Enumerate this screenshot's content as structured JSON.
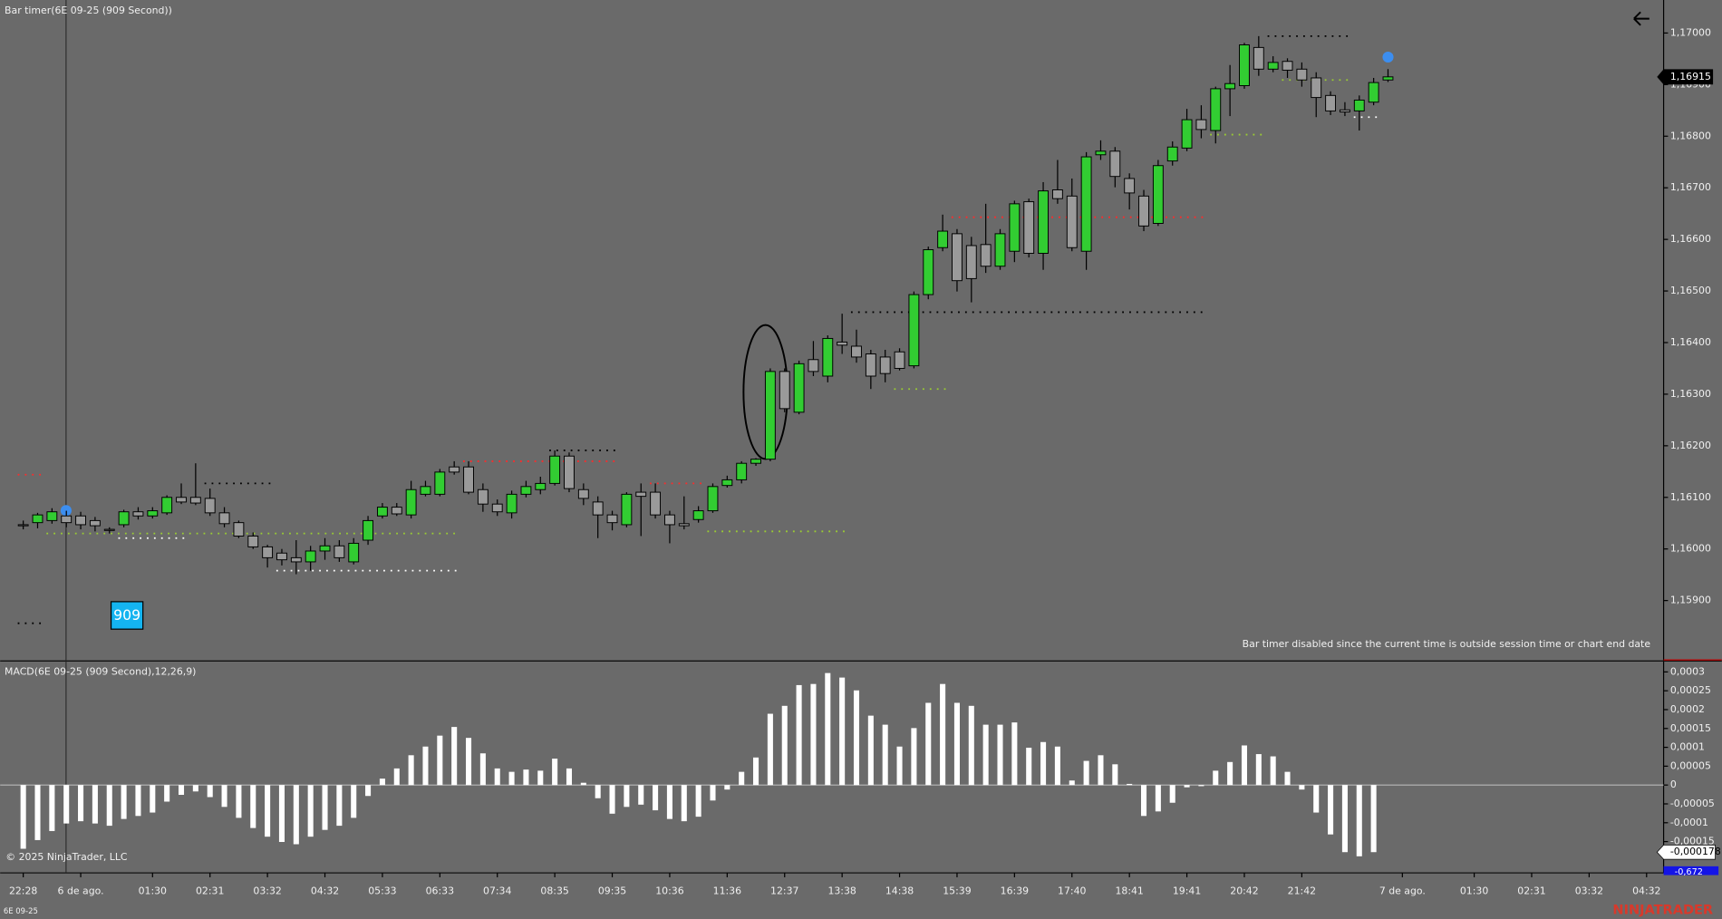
{
  "timer": "909",
  "copyright": "© 2025 NinjaTrader, LLC",
  "instrument": "6E 09-25",
  "brand": "NINJATRADER",
  "chart_data": [
    {
      "type": "candlestick",
      "title": "Bar timer(6E 09-25 (909 Second))",
      "note": "Bar timer disabled since the current time is outside session time or chart end date",
      "categories": [
        "22:28",
        null,
        null,
        null,
        "6 de ago.",
        null,
        null,
        null,
        null,
        "01:30",
        null,
        null,
        null,
        "02:31",
        null,
        null,
        null,
        "03:32",
        null,
        null,
        null,
        "04:32",
        null,
        null,
        null,
        "05:33",
        null,
        null,
        null,
        "06:33",
        null,
        null,
        null,
        "07:34",
        null,
        null,
        null,
        "08:35",
        null,
        null,
        null,
        "09:35",
        null,
        null,
        null,
        "10:36",
        null,
        null,
        null,
        "11:36",
        null,
        null,
        null,
        "12:37",
        null,
        null,
        null,
        "13:38",
        null,
        null,
        null,
        "14:38",
        null,
        null,
        null,
        "15:39",
        null,
        null,
        null,
        "16:39",
        null,
        null,
        null,
        "17:40",
        null,
        null,
        null,
        "18:41",
        null,
        null,
        null,
        "19:41",
        null,
        null,
        null,
        "20:42",
        null,
        null,
        null,
        "21:42",
        null,
        null,
        null,
        null,
        null,
        null,
        "7 de ago.",
        null,
        null,
        null,
        null,
        "01:30",
        null,
        null,
        null,
        "02:31",
        null,
        null,
        null,
        "03:32",
        null,
        null,
        null,
        "04:32"
      ],
      "open": [
        1.16047,
        1.16051,
        1.16055,
        1.16064,
        1.16064,
        1.16055,
        1.16038,
        1.16047,
        1.16072,
        1.16064,
        1.1607,
        1.161,
        1.161,
        1.16098,
        1.1607,
        1.16051,
        1.16025,
        1.16004,
        1.15992,
        1.15983,
        1.15975,
        1.15996,
        1.16006,
        1.15975,
        1.16017,
        1.16064,
        1.16081,
        1.16066,
        1.16106,
        1.16106,
        1.16159,
        1.16159,
        1.16115,
        1.16087,
        1.1607,
        1.16106,
        1.16115,
        1.16127,
        1.1618,
        1.16115,
        1.16091,
        1.16066,
        1.16047,
        1.1611,
        1.1611,
        1.16066,
        1.16049,
        1.16057,
        1.16074,
        1.16123,
        1.16134,
        1.16166,
        1.16174,
        1.16344,
        1.16265,
        1.16367,
        1.16335,
        1.16401,
        1.16393,
        1.16378,
        1.16372,
        1.16382,
        1.16355,
        1.16493,
        1.16584,
        1.16611,
        1.16588,
        1.1659,
        1.16548,
        1.16577,
        1.16673,
        1.16573,
        1.16696,
        1.16684,
        1.16577,
        1.16764,
        1.16771,
        1.16718,
        1.16684,
        1.16631,
        1.16752,
        1.16777,
        1.16832,
        1.16811,
        1.16892,
        1.16898,
        1.16972,
        1.1693,
        1.16945,
        1.1693,
        1.16913,
        1.16879,
        1.16851,
        1.16849,
        1.16866,
        1.16909,
        null,
        null,
        null,
        null,
        null,
        null,
        null,
        null,
        null,
        null,
        null,
        null,
        null,
        null,
        null,
        null,
        null,
        null
      ],
      "high": [
        1.16055,
        1.1607,
        1.16079,
        1.16074,
        1.16072,
        1.16062,
        1.16042,
        1.16076,
        1.16081,
        1.16081,
        1.16104,
        1.16127,
        1.16166,
        1.16117,
        1.16081,
        1.16055,
        1.16032,
        1.16008,
        1.16,
        1.16017,
        1.16006,
        1.16021,
        1.16017,
        1.16021,
        1.16064,
        1.16089,
        1.16089,
        1.16132,
        1.16132,
        1.16155,
        1.1617,
        1.1617,
        1.16127,
        1.16096,
        1.16113,
        1.16132,
        1.1614,
        1.16191,
        1.16187,
        1.16127,
        1.16102,
        1.16074,
        1.1611,
        1.16127,
        1.16127,
        1.16074,
        1.16102,
        1.16083,
        1.16127,
        1.16142,
        1.1617,
        1.16176,
        1.1635,
        1.1635,
        1.16365,
        1.16403,
        1.16414,
        1.16456,
        1.16425,
        1.16386,
        1.16386,
        1.16389,
        1.16499,
        1.16586,
        1.16648,
        1.1662,
        1.16605,
        1.16669,
        1.1662,
        1.16675,
        1.16679,
        1.16711,
        1.16754,
        1.16718,
        1.16769,
        1.16792,
        1.16779,
        1.16728,
        1.16696,
        1.16754,
        1.1679,
        1.16853,
        1.1686,
        1.16896,
        1.16938,
        1.16981,
        1.16994,
        1.16955,
        1.16951,
        1.16943,
        1.16924,
        1.16887,
        1.16866,
        1.16879,
        1.16913,
        1.1693,
        null,
        null,
        null,
        null,
        null,
        null,
        null,
        null,
        null,
        null,
        null,
        null,
        null,
        null,
        null,
        null,
        null,
        null
      ],
      "low": [
        1.16038,
        1.1604,
        1.16049,
        1.16042,
        1.16038,
        1.16034,
        1.1603,
        1.16042,
        1.16057,
        1.16059,
        1.16066,
        1.16087,
        1.16085,
        1.16064,
        1.16042,
        1.16021,
        1.16,
        1.15964,
        1.15968,
        1.15951,
        1.15958,
        1.15979,
        1.15975,
        1.1597,
        1.16008,
        1.16059,
        1.16064,
        1.16059,
        1.16102,
        1.16102,
        1.16144,
        1.16106,
        1.16072,
        1.16064,
        1.16059,
        1.161,
        1.16106,
        1.16123,
        1.1611,
        1.16085,
        1.16021,
        1.16036,
        1.16042,
        1.16025,
        1.16059,
        1.16011,
        1.16038,
        1.16051,
        1.1607,
        1.16119,
        1.16127,
        1.16161,
        1.1617,
        1.16265,
        1.16261,
        1.16335,
        1.16323,
        1.16378,
        1.16361,
        1.1631,
        1.16323,
        1.16346,
        1.1635,
        1.16484,
        1.16577,
        1.16499,
        1.16478,
        1.16535,
        1.16541,
        1.16556,
        1.16565,
        1.16541,
        1.16669,
        1.16577,
        1.16541,
        1.16754,
        1.16701,
        1.16658,
        1.16616,
        1.16626,
        1.16743,
        1.16771,
        1.16796,
        1.16786,
        1.16839,
        1.16892,
        1.16917,
        1.16924,
        1.16913,
        1.16896,
        1.16837,
        1.16841,
        1.16839,
        1.16811,
        1.1686,
        1.16905,
        null,
        null,
        null,
        null,
        null,
        null,
        null,
        null,
        null,
        null,
        null,
        null,
        null,
        null,
        null,
        null,
        null,
        null
      ],
      "close": [
        1.16045,
        1.16066,
        1.16072,
        1.16051,
        1.16047,
        1.16045,
        1.16036,
        1.16072,
        1.16064,
        1.16074,
        1.161,
        1.16091,
        1.16089,
        1.1607,
        1.16049,
        1.16025,
        1.16004,
        1.15983,
        1.15979,
        1.15975,
        1.15996,
        1.16006,
        1.15983,
        1.16011,
        1.16055,
        1.16081,
        1.16068,
        1.16115,
        1.16121,
        1.16149,
        1.16149,
        1.1611,
        1.16087,
        1.16072,
        1.16106,
        1.16121,
        1.16127,
        1.1618,
        1.16117,
        1.16098,
        1.16066,
        1.16051,
        1.16106,
        1.16102,
        1.16066,
        1.16047,
        1.16045,
        1.16074,
        1.16121,
        1.16134,
        1.16166,
        1.16174,
        1.16344,
        1.16272,
        1.16359,
        1.16344,
        1.16408,
        1.16395,
        1.16372,
        1.16335,
        1.1634,
        1.1635,
        1.16493,
        1.1658,
        1.16616,
        1.1652,
        1.16524,
        1.16548,
        1.16611,
        1.16669,
        1.16573,
        1.16694,
        1.16679,
        1.16584,
        1.1676,
        1.16771,
        1.16722,
        1.1669,
        1.16626,
        1.16743,
        1.16779,
        1.16832,
        1.16813,
        1.16892,
        1.16902,
        1.16977,
        1.1693,
        1.16943,
        1.16928,
        1.16909,
        1.16875,
        1.16849,
        1.16847,
        1.1687,
        1.16904,
        1.16915,
        null,
        null,
        null,
        null,
        null,
        null,
        null,
        null,
        null,
        null,
        null,
        null,
        null,
        null,
        null,
        null,
        null,
        null
      ],
      "up_color": "#32cd32",
      "down_color": "#9a9a9a",
      "ylim": [
        1.15785,
        1.17064
      ],
      "yticks": [
        {
          "value": 1.159,
          "label": "1,15900"
        },
        {
          "value": 1.16,
          "label": "1,16000"
        },
        {
          "value": 1.161,
          "label": "1,16100"
        },
        {
          "value": 1.162,
          "label": "1,16200"
        },
        {
          "value": 1.163,
          "label": "1,16300"
        },
        {
          "value": 1.164,
          "label": "1,16400"
        },
        {
          "value": 1.165,
          "label": "1,16500"
        },
        {
          "value": 1.166,
          "label": "1,16600"
        },
        {
          "value": 1.167,
          "label": "1,16700"
        },
        {
          "value": 1.168,
          "label": "1,16800"
        },
        {
          "value": 1.169,
          "label": "1,16900"
        },
        {
          "value": 1.17,
          "label": "1,17000"
        }
      ],
      "grid": false,
      "current_price": {
        "value": 1.16915,
        "label": "1,16915"
      },
      "levels": [
        {
          "value": 1.16144,
          "start": 0,
          "end": 1,
          "color": "#ff2a2a"
        },
        {
          "value": 1.15856,
          "start": 0,
          "end": 1,
          "color": "#000000"
        },
        {
          "value": 1.16127,
          "start": 13,
          "end": 17,
          "color": "#000000"
        },
        {
          "value": 1.1603,
          "start": 2,
          "end": 30,
          "color": "#9acd32"
        },
        {
          "value": 1.16021,
          "start": 7,
          "end": 11,
          "color": "#ffffff"
        },
        {
          "value": 1.15958,
          "start": 18,
          "end": 30,
          "color": "#ffffff"
        },
        {
          "value": 1.1617,
          "start": 31,
          "end": 41,
          "color": "#ff2a2a"
        },
        {
          "value": 1.16191,
          "start": 37,
          "end": 41,
          "color": "#000000"
        },
        {
          "value": 1.16127,
          "start": 44,
          "end": 47,
          "color": "#ff2a2a"
        },
        {
          "value": 1.16034,
          "start": 48,
          "end": 57,
          "color": "#9acd32"
        },
        {
          "value": 1.16459,
          "start": 58,
          "end": 82,
          "color": "#000000"
        },
        {
          "value": 1.1631,
          "start": 61,
          "end": 64,
          "color": "#9acd32"
        },
        {
          "value": 1.16643,
          "start": 65,
          "end": 82,
          "color": "#ff2a2a"
        },
        {
          "value": 1.16803,
          "start": 83,
          "end": 86,
          "color": "#9acd32"
        },
        {
          "value": 1.16994,
          "start": 87,
          "end": 92,
          "color": "#000000"
        },
        {
          "value": 1.16909,
          "start": 88,
          "end": 92,
          "color": "#9acd32"
        },
        {
          "value": 1.16837,
          "start": 93,
          "end": 94,
          "color": "#ffffff"
        }
      ]
    },
    {
      "type": "bar",
      "title": "MACD(6E 09-25 (909 Second),12,26,9)",
      "values": [
        -0.000169,
        -0.000146,
        -0.000122,
        -0.000102,
        -9.6e-05,
        -0.000102,
        -0.000108,
        -9e-05,
        -8.2e-05,
        -7.3e-05,
        -4.4e-05,
        -2.6e-05,
        -1.7e-05,
        -3.2e-05,
        -5.8e-05,
        -8.7e-05,
        -0.000114,
        -0.000137,
        -0.000151,
        -0.000157,
        -0.000137,
        -0.000119,
        -0.000108,
        -8.7e-05,
        -2.9e-05,
        1.7e-05,
        4.4e-05,
        7.9e-05,
        0.000102,
        0.000131,
        0.000154,
        0.000125,
        8.4e-05,
        4.4e-05,
        3.5e-05,
        4.1e-05,
        3.8e-05,
        7e-05,
        4.4e-05,
        6e-06,
        -3.5e-05,
        -7.6e-05,
        -5.8e-05,
        -5.2e-05,
        -6.7e-05,
        -9e-05,
        -9.6e-05,
        -8.4e-05,
        -4.1e-05,
        -1.2e-05,
        3.5e-05,
        7.3e-05,
        0.000189,
        0.00021,
        0.000265,
        0.000268,
        0.000297,
        0.000285,
        0.000251,
        0.000184,
        0.00016,
        0.000102,
        0.000151,
        0.000218,
        0.000268,
        0.000218,
        0.00021,
        0.00016,
        0.00016,
        0.000166,
        9.9e-05,
        0.000114,
        0.000102,
        1.2e-05,
        6.4e-05,
        7.9e-05,
        5.5e-05,
        3e-06,
        -8.2e-05,
        -7e-05,
        -4.7e-05,
        -6e-06,
        -3e-06,
        3.8e-05,
        6.1e-05,
        0.000105,
        8.2e-05,
        7.6e-05,
        3.5e-05,
        -1.2e-05,
        -7.3e-05,
        -0.000131,
        -0.000178,
        -0.000189,
        -0.000178,
        null,
        null,
        null,
        null,
        null,
        null,
        null,
        null,
        null,
        null,
        null,
        null,
        null,
        null,
        null,
        null,
        null,
        null,
        null
      ],
      "color": "#ffffff",
      "ylim": [
        -0.000233,
        0.000329
      ],
      "yticks": [
        {
          "value": -0.00015,
          "label": "-0,00015"
        },
        {
          "value": -0.0001,
          "label": "-0,0001"
        },
        {
          "value": -5e-05,
          "label": "-0,00005"
        },
        0,
        {
          "value": 5e-05,
          "label": "0,00005"
        },
        {
          "value": 0.0001,
          "label": "0,0001"
        },
        {
          "value": 0.00015,
          "label": "0,00015"
        },
        {
          "value": 0.0002,
          "label": "0,0002"
        },
        {
          "value": 0.00025,
          "label": "0,00025"
        },
        {
          "value": 0.0003,
          "label": "0,0003"
        }
      ],
      "current_value": {
        "value": -0.000178,
        "label": "-0,000178"
      },
      "signal_label": "-0,672"
    }
  ]
}
